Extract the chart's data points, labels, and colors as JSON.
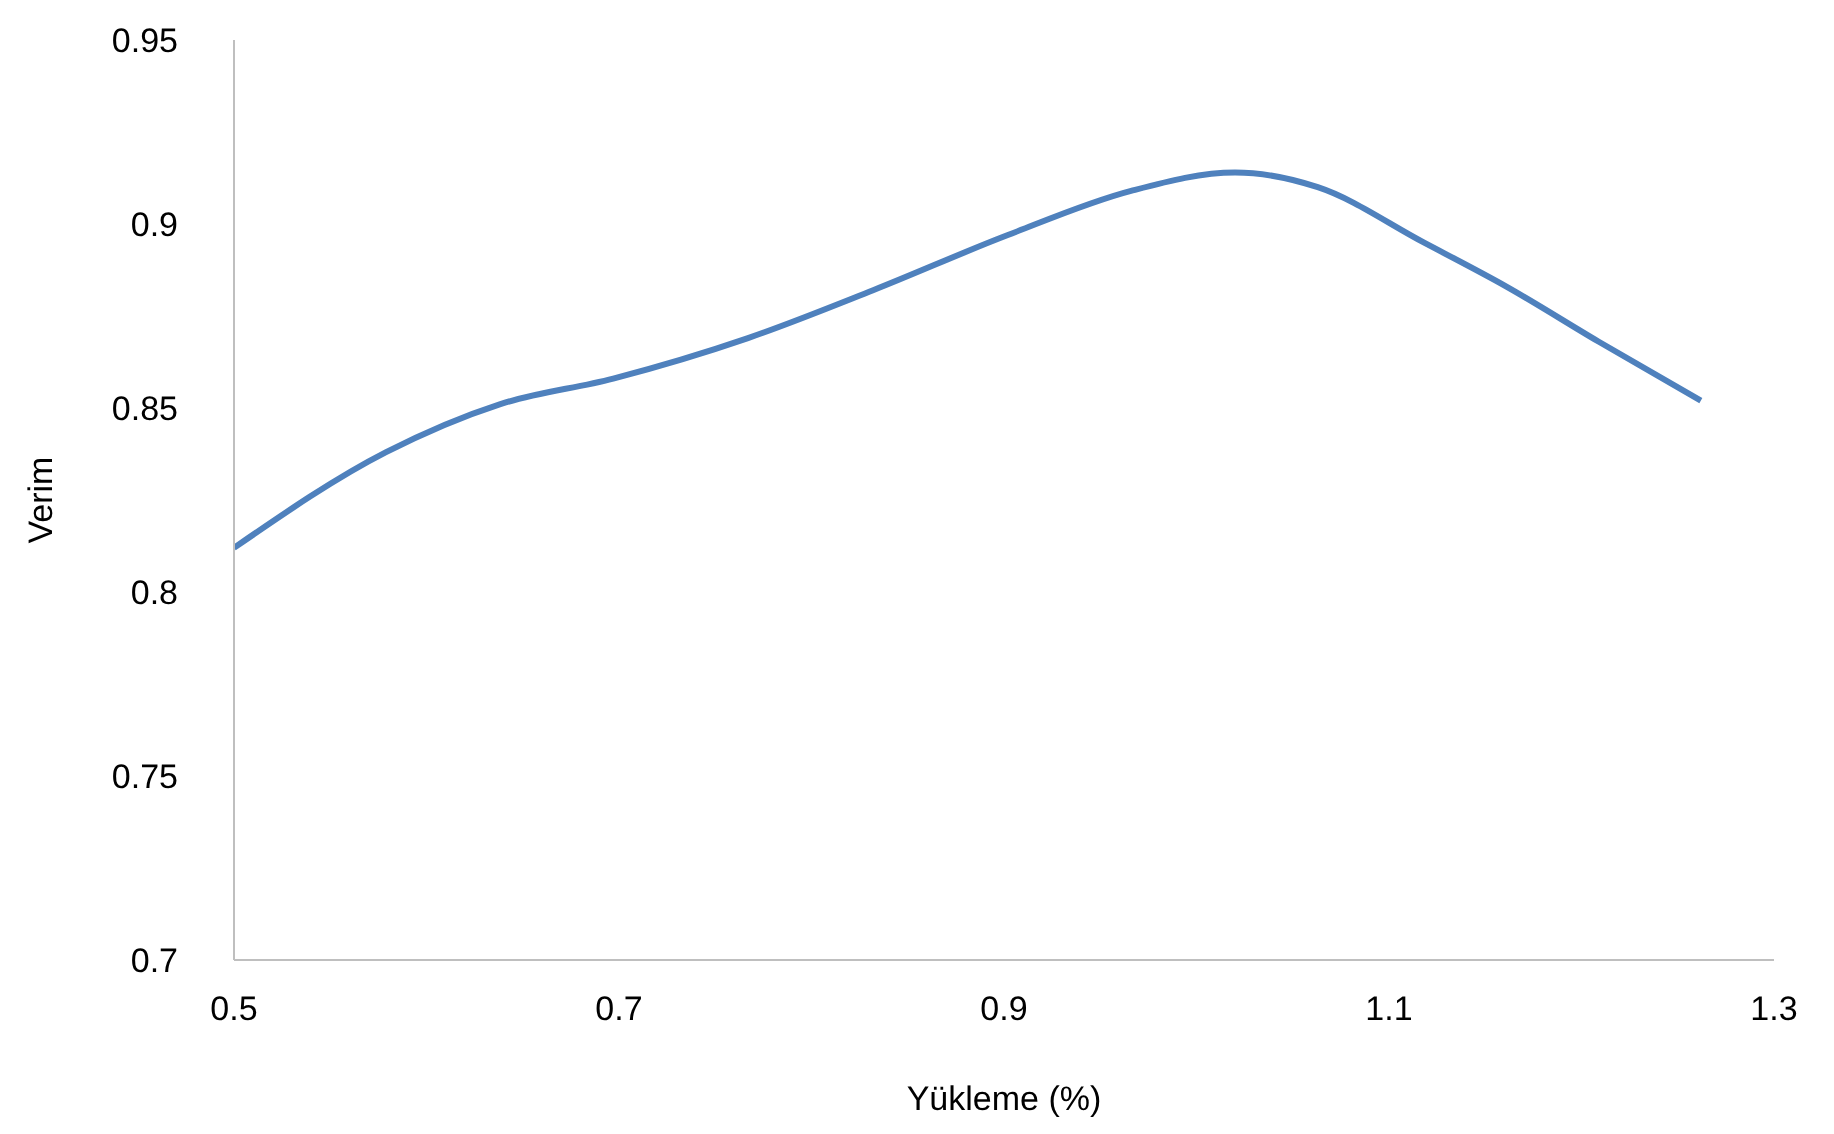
{
  "chart_data": {
    "type": "line",
    "xlabel": "Yükleme (%)",
    "ylabel": "Verim",
    "x": [
      0.5,
      0.579,
      0.638,
      0.697,
      0.767,
      0.832,
      0.902,
      0.966,
      1.02,
      1.063,
      1.118,
      1.161,
      1.209,
      1.262
    ],
    "series": [
      {
        "color": "#4f81bd",
        "values": [
          0.812,
          0.838,
          0.851,
          0.858,
          0.869,
          0.882,
          0.897,
          0.909,
          0.914,
          0.91,
          0.895,
          0.883,
          0.868,
          0.852
        ]
      }
    ],
    "xlim": [
      0.5,
      1.3
    ],
    "xticks": [
      0.5,
      0.7,
      0.9,
      1.1,
      1.3
    ],
    "ylim": [
      0.7,
      0.95
    ],
    "yticks": [
      0.7,
      0.75,
      0.8,
      0.85,
      0.9,
      0.95
    ],
    "grid": false,
    "legend": false,
    "marker": "none",
    "line_style": "solid"
  }
}
